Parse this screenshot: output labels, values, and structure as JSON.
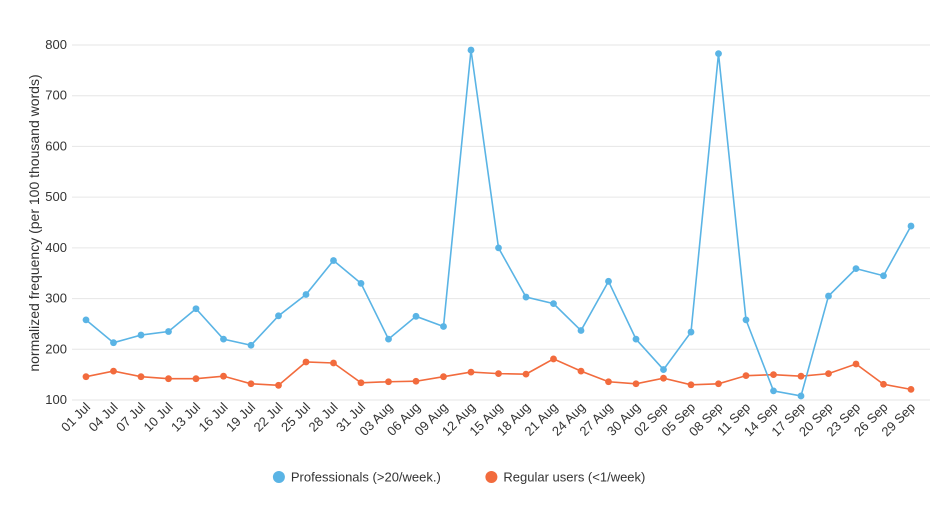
{
  "chart_data": {
    "type": "line",
    "title": "",
    "xlabel": "",
    "ylabel": "normalized frequency (per 100 thousand words)",
    "ylim": [
      100,
      800
    ],
    "yticks": [
      100,
      200,
      300,
      400,
      500,
      600,
      700,
      800
    ],
    "grid": true,
    "legend_position": "bottom-center",
    "categories": [
      "01 Jul",
      "04 Jul",
      "07 Jul",
      "10 Jul",
      "13 Jul",
      "16 Jul",
      "19 Jul",
      "22 Jul",
      "25 Jul",
      "28 Jul",
      "31 Jul",
      "03 Aug",
      "06 Aug",
      "09 Aug",
      "12 Aug",
      "15 Aug",
      "18 Aug",
      "21 Aug",
      "24 Aug",
      "27 Aug",
      "30 Aug",
      "02 Sep",
      "05 Sep",
      "08 Sep",
      "11 Sep",
      "14 Sep",
      "17 Sep",
      "20 Sep",
      "23 Sep",
      "26 Sep",
      "29 Sep"
    ],
    "series": [
      {
        "name": "Professionals (>20/week.)",
        "color": "#5ab4e5",
        "values": [
          258,
          213,
          228,
          235,
          280,
          220,
          208,
          266,
          308,
          375,
          330,
          220,
          265,
          245,
          790,
          400,
          303,
          290,
          237,
          334,
          220,
          160,
          234,
          783,
          258,
          118,
          108,
          305,
          359,
          345,
          443
        ]
      },
      {
        "name": "Regular users (<1/week)",
        "color": "#f26b3d",
        "values": [
          146,
          157,
          146,
          142,
          142,
          147,
          132,
          129,
          175,
          173,
          134,
          136,
          137,
          146,
          155,
          152,
          151,
          181,
          157,
          136,
          132,
          143,
          130,
          132,
          148,
          150,
          147,
          152,
          171,
          131,
          121
        ]
      }
    ]
  }
}
